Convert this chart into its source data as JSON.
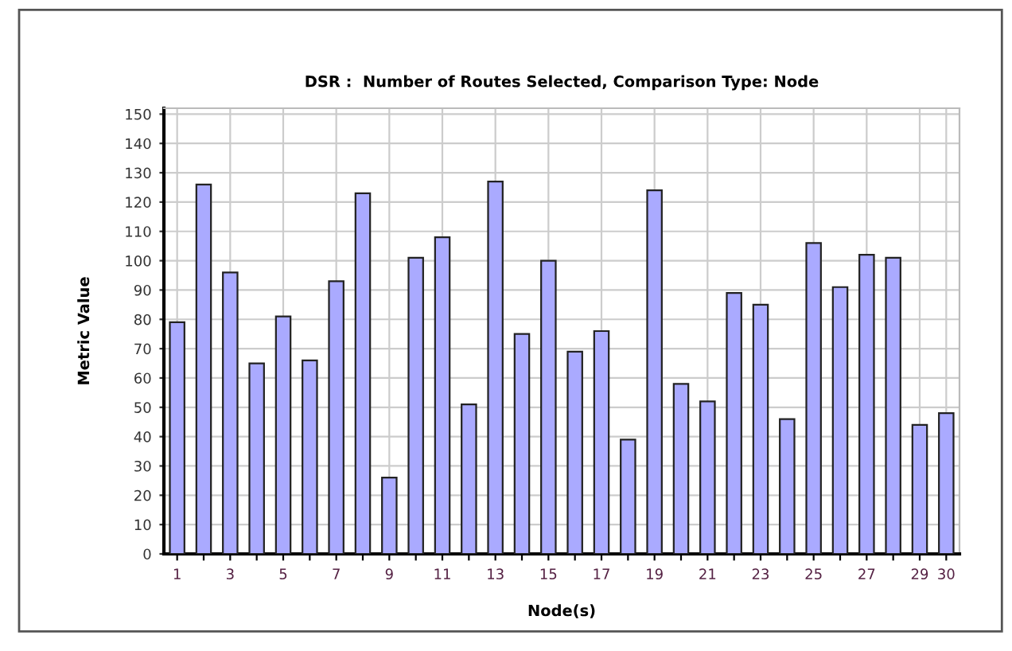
{
  "chart_data": {
    "type": "bar",
    "title": "DSR :  Number of Routes Selected, Comparison Type: Node",
    "xlabel": "Node(s)",
    "ylabel": "Metric Value",
    "categories": [
      "1",
      null,
      "3",
      null,
      "5",
      null,
      "7",
      null,
      "9",
      null,
      "11",
      null,
      "13",
      null,
      "15",
      null,
      "17",
      null,
      "19",
      null,
      "21",
      null,
      "23",
      null,
      "25",
      null,
      "27",
      null,
      "29",
      "30"
    ],
    "values": [
      79,
      126,
      96,
      65,
      81,
      66,
      93,
      123,
      26,
      101,
      108,
      51,
      127,
      75,
      100,
      69,
      76,
      39,
      124,
      58,
      52,
      89,
      85,
      46,
      106,
      91,
      102,
      101,
      44,
      48
    ],
    "color": "#aaaaff",
    "ylim": [
      0,
      152
    ],
    "yticks": [
      0,
      10,
      20,
      30,
      40,
      50,
      60,
      70,
      80,
      90,
      100,
      110,
      120,
      130,
      140,
      150
    ],
    "grid": true,
    "legend": false
  }
}
